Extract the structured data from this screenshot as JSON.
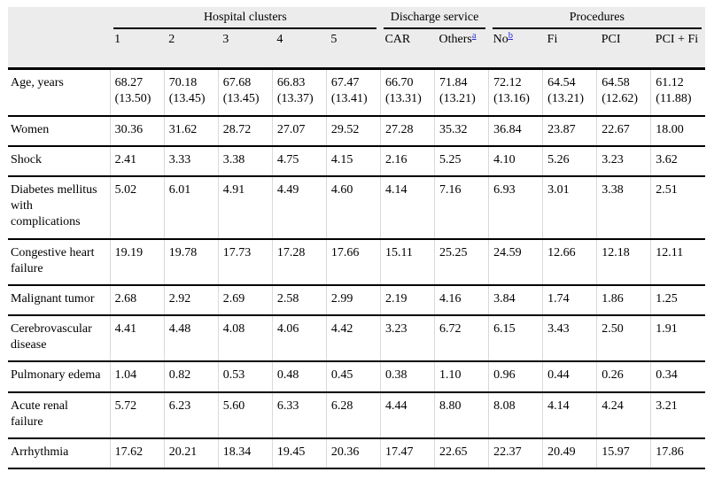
{
  "footnote_link_color": "#2a2ad6",
  "header_bg_color": "#ececec",
  "chart_data": {
    "type": "table",
    "col_groups": [
      {
        "label": "Hospital clusters",
        "span": 5
      },
      {
        "label": "Discharge service",
        "span": 2
      },
      {
        "label": "Procedures",
        "span": 4
      }
    ],
    "columns": [
      {
        "label": "1",
        "sup": ""
      },
      {
        "label": "2",
        "sup": ""
      },
      {
        "label": "3",
        "sup": ""
      },
      {
        "label": "4",
        "sup": ""
      },
      {
        "label": "5",
        "sup": ""
      },
      {
        "label": "CAR",
        "sup": ""
      },
      {
        "label": "Others",
        "sup": "a"
      },
      {
        "label": "No",
        "sup": "b"
      },
      {
        "label": "Fi",
        "sup": ""
      },
      {
        "label": "PCI",
        "sup": ""
      },
      {
        "label": "PCI + Fi",
        "sup": ""
      }
    ],
    "rows": [
      {
        "label": "Age, years",
        "values": [
          "68.27 (13.50)",
          "70.18 (13.45)",
          "67.68 (13.45)",
          "66.83 (13.37)",
          "67.47 (13.41)",
          "66.70 (13.31)",
          "71.84 (13.21)",
          "72.12 (13.16)",
          "64.54 (13.21)",
          "64.58 (12.62)",
          "61.12 (11.88)"
        ]
      },
      {
        "label": "Women",
        "values": [
          "30.36",
          "31.62",
          "28.72",
          "27.07",
          "29.52",
          "27.28",
          "35.32",
          "36.84",
          "23.87",
          "22.67",
          "18.00"
        ]
      },
      {
        "label": "Shock",
        "values": [
          "2.41",
          "3.33",
          "3.38",
          "4.75",
          "4.15",
          "2.16",
          "5.25",
          "4.10",
          "5.26",
          "3.23",
          "3.62"
        ]
      },
      {
        "label": "Diabetes mellitus with complications",
        "values": [
          "5.02",
          "6.01",
          "4.91",
          "4.49",
          "4.60",
          "4.14",
          "7.16",
          "6.93",
          "3.01",
          "3.38",
          "2.51"
        ]
      },
      {
        "label": "Congestive heart failure",
        "values": [
          "19.19",
          "19.78",
          "17.73",
          "17.28",
          "17.66",
          "15.11",
          "25.25",
          "24.59",
          "12.66",
          "12.18",
          "12.11"
        ]
      },
      {
        "label": "Malignant tumor",
        "values": [
          "2.68",
          "2.92",
          "2.69",
          "2.58",
          "2.99",
          "2.19",
          "4.16",
          "3.84",
          "1.74",
          "1.86",
          "1.25"
        ]
      },
      {
        "label": "Cerebrovascular disease",
        "values": [
          "4.41",
          "4.48",
          "4.08",
          "4.06",
          "4.42",
          "3.23",
          "6.72",
          "6.15",
          "3.43",
          "2.50",
          "1.91"
        ]
      },
      {
        "label": "Pulmonary edema",
        "values": [
          "1.04",
          "0.82",
          "0.53",
          "0.48",
          "0.45",
          "0.38",
          "1.10",
          "0.96",
          "0.44",
          "0.26",
          "0.34"
        ]
      },
      {
        "label": "Acute renal failure",
        "values": [
          "5.72",
          "6.23",
          "5.60",
          "6.33",
          "6.28",
          "4.44",
          "8.80",
          "8.08",
          "4.14",
          "4.24",
          "3.21"
        ]
      },
      {
        "label": "Arrhythmia",
        "values": [
          "17.62",
          "20.21",
          "18.34",
          "19.45",
          "20.36",
          "17.47",
          "22.65",
          "22.37",
          "20.49",
          "15.97",
          "17.86"
        ]
      }
    ]
  }
}
